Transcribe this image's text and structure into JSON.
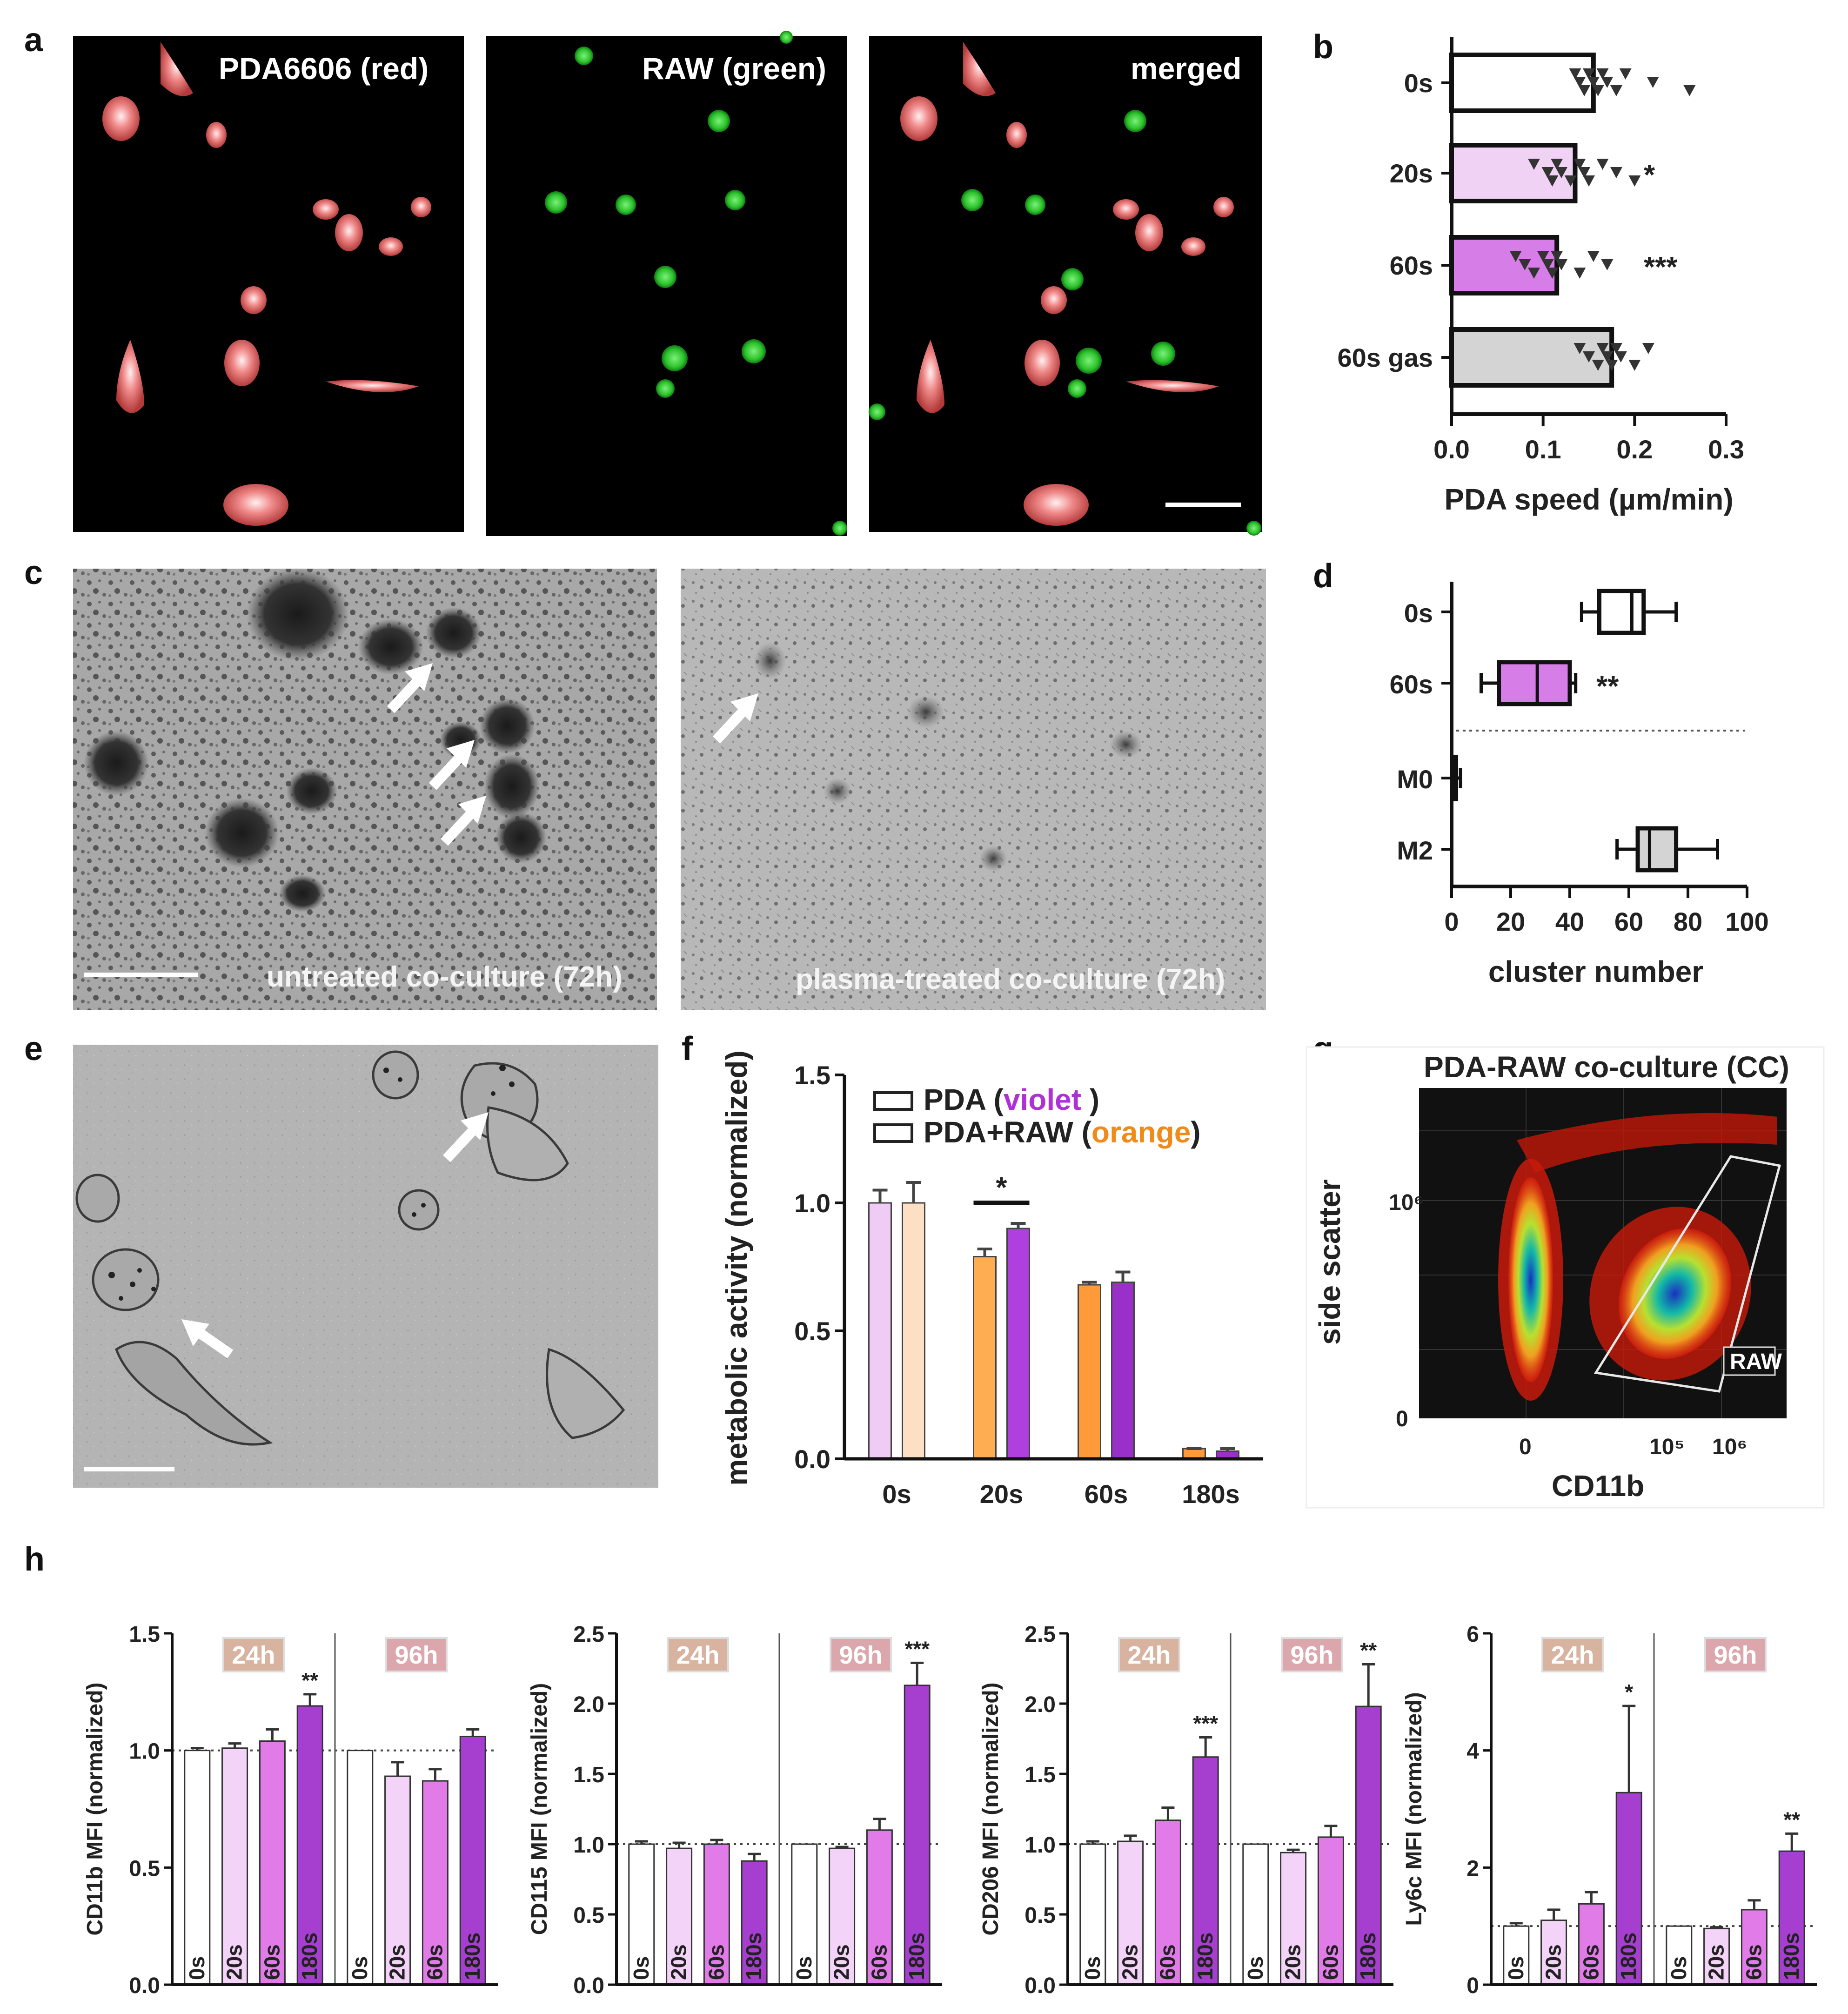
{
  "panels": {
    "a": {
      "label": "a",
      "images": [
        {
          "label": "PDA6606 (red)",
          "channel": "red"
        },
        {
          "label": "RAW (green)",
          "channel": "green"
        },
        {
          "label": "merged",
          "channel": "merged"
        }
      ]
    },
    "b": {
      "label": "b"
    },
    "c": {
      "label": "c",
      "images": [
        {
          "label": "untreated co-culture (72h)"
        },
        {
          "label": "plasma-treated co-culture (72h)"
        }
      ]
    },
    "d": {
      "label": "d"
    },
    "e": {
      "label": "e"
    },
    "f": {
      "label": "f"
    },
    "g": {
      "label": "g",
      "title": "PDA-RAW co-culture (CC)",
      "xlabel": "CD11b",
      "ylabel": "side scatter",
      "gate_label": "RAW",
      "x_ticks": [
        "0",
        "10⁵",
        "10⁶"
      ],
      "y_ticks": [
        "0",
        "10⁶"
      ]
    },
    "h": {
      "label": "h",
      "time_boxes": [
        "24h",
        "96h"
      ]
    }
  },
  "chart_data": [
    {
      "id": "b",
      "type": "bar",
      "orientation": "horizontal",
      "categories": [
        "0s",
        "20s",
        "60s",
        "60s gas"
      ],
      "values": [
        0.155,
        0.135,
        0.115,
        0.175
      ],
      "xlabel": "PDA speed  (µm/min)",
      "xlim": [
        0,
        0.3
      ],
      "x_ticks": [
        "0.0",
        "0.1",
        "0.2",
        "0.3"
      ],
      "colors": [
        "#ffffff",
        "#f0d2f5",
        "#d77de8",
        "#d4d4d4"
      ],
      "significance": [
        "",
        "*",
        "***",
        ""
      ],
      "points": [
        [
          0.135,
          0.14,
          0.145,
          0.15,
          0.155,
          0.16,
          0.165,
          0.17,
          0.18,
          0.19,
          0.22,
          0.26
        ],
        [
          0.09,
          0.105,
          0.11,
          0.115,
          0.12,
          0.13,
          0.14,
          0.145,
          0.15,
          0.165,
          0.18,
          0.2
        ],
        [
          0.07,
          0.08,
          0.09,
          0.1,
          0.105,
          0.11,
          0.115,
          0.12,
          0.14,
          0.155,
          0.17
        ],
        [
          0.14,
          0.15,
          0.16,
          0.165,
          0.17,
          0.175,
          0.18,
          0.185,
          0.2,
          0.215
        ]
      ]
    },
    {
      "id": "d",
      "type": "box",
      "orientation": "horizontal",
      "categories": [
        "0s",
        "60s",
        "M0",
        "M2"
      ],
      "xlabel": "cluster number",
      "xlim": [
        0,
        100
      ],
      "x_ticks": [
        "0",
        "20",
        "40",
        "60",
        "80",
        "100"
      ],
      "boxes": [
        {
          "min": 44,
          "q1": 50,
          "median": 61,
          "q3": 65,
          "max": 76,
          "color": "#ffffff"
        },
        {
          "min": 10,
          "q1": 16,
          "median": 29,
          "q3": 40,
          "max": 42,
          "color": "#d77de8"
        },
        {
          "min": 0,
          "q1": 0.5,
          "median": 1,
          "q3": 1.5,
          "max": 3,
          "color": "#888888"
        },
        {
          "min": 56,
          "q1": 63,
          "median": 67,
          "q3": 76,
          "max": 90,
          "color": "#d4d4d4"
        }
      ],
      "significance": [
        "",
        "**",
        "",
        ""
      ]
    },
    {
      "id": "f",
      "type": "bar",
      "categories": [
        "0s",
        "20s",
        "60s",
        "180s"
      ],
      "ylabel": "metabolic activity (normalized)",
      "ylim": [
        0,
        1.5
      ],
      "y_ticks": [
        "0.0",
        "0.5",
        "1.0",
        "1.5"
      ],
      "legend_text": {
        "s1_a": "PDA (",
        "s1_b": "violet",
        "s1_c": " )",
        "s2_a": "PDA+RAW (",
        "s2_b": "orange",
        "s2_c": ")"
      },
      "legend_colors": {
        "violet": "#b030d8",
        "orange": "#f08a1a"
      },
      "significance": "*",
      "series": [
        {
          "values": [
            1.0,
            0.79,
            0.68,
            0.04
          ],
          "errors": [
            0.05,
            0.03,
            0.01,
            0.0
          ],
          "colors": [
            "#efcbf5",
            "#ffad52",
            "#ff9a3a",
            "#ff9a3a"
          ]
        },
        {
          "values": [
            1.0,
            0.9,
            0.69,
            0.03
          ],
          "errors": [
            0.08,
            0.02,
            0.04,
            0.01
          ],
          "colors": [
            "#fde0c4",
            "#b03fe0",
            "#9a30c8",
            "#9a30c8"
          ]
        }
      ]
    },
    {
      "id": "h",
      "type": "bar",
      "groups": [
        "24h",
        "96h"
      ],
      "categories": [
        "0s",
        "20s",
        "60s",
        "180s"
      ],
      "colors": [
        "#ffffff",
        "#f3d3f7",
        "#e07be8",
        "#a63ed0"
      ],
      "subplots": [
        {
          "ylabel": "CD11b MFI (normalized)",
          "ylim": [
            0,
            1.5
          ],
          "y_ticks": [
            "0.0",
            "0.5",
            "1.0",
            "1.5"
          ],
          "values_24h": [
            1.0,
            1.01,
            1.04,
            1.19
          ],
          "errors_24h": [
            0.01,
            0.02,
            0.05,
            0.05
          ],
          "values_96h": [
            1.0,
            0.89,
            0.87,
            1.06
          ],
          "errors_96h": [
            0.0,
            0.06,
            0.05,
            0.03
          ],
          "sig_24h": [
            "",
            "",
            "",
            "**"
          ],
          "sig_96h": [
            "",
            "",
            "",
            ""
          ]
        },
        {
          "ylabel": "CD115 MFI (normalized)",
          "ylim": [
            0,
            2.5
          ],
          "y_ticks": [
            "0.0",
            "0.5",
            "1.0",
            "1.5",
            "2.0",
            "2.5"
          ],
          "values_24h": [
            1.0,
            0.97,
            1.0,
            0.88
          ],
          "errors_24h": [
            0.02,
            0.04,
            0.03,
            0.05
          ],
          "values_96h": [
            1.0,
            0.97,
            1.1,
            2.13
          ],
          "errors_96h": [
            0.0,
            0.01,
            0.08,
            0.16
          ],
          "sig_24h": [
            "",
            "",
            "",
            ""
          ],
          "sig_96h": [
            "",
            "",
            "",
            "***"
          ]
        },
        {
          "ylabel": "CD206 MFI (normalized)",
          "ylim": [
            0,
            2.5
          ],
          "y_ticks": [
            "0.0",
            "0.5",
            "1.0",
            "1.5",
            "2.0",
            "2.5"
          ],
          "values_24h": [
            1.0,
            1.02,
            1.17,
            1.62
          ],
          "errors_24h": [
            0.02,
            0.04,
            0.09,
            0.14
          ],
          "values_96h": [
            1.0,
            0.94,
            1.05,
            1.98
          ],
          "errors_96h": [
            0.0,
            0.02,
            0.08,
            0.3
          ],
          "sig_24h": [
            "",
            "",
            "",
            "***"
          ],
          "sig_96h": [
            "",
            "",
            "",
            "**"
          ]
        },
        {
          "ylabel": "Ly6c MFI (normalized)",
          "ylim": [
            0,
            6
          ],
          "y_ticks": [
            "0",
            "2",
            "4",
            "6"
          ],
          "values_24h": [
            1.0,
            1.1,
            1.38,
            3.28
          ],
          "errors_24h": [
            0.05,
            0.18,
            0.2,
            1.48
          ],
          "values_96h": [
            1.0,
            0.96,
            1.28,
            2.28
          ],
          "errors_96h": [
            0.0,
            0.02,
            0.16,
            0.3
          ],
          "sig_24h": [
            "",
            "",
            "",
            "*"
          ],
          "sig_96h": [
            "",
            "",
            "",
            "**"
          ]
        }
      ]
    }
  ]
}
